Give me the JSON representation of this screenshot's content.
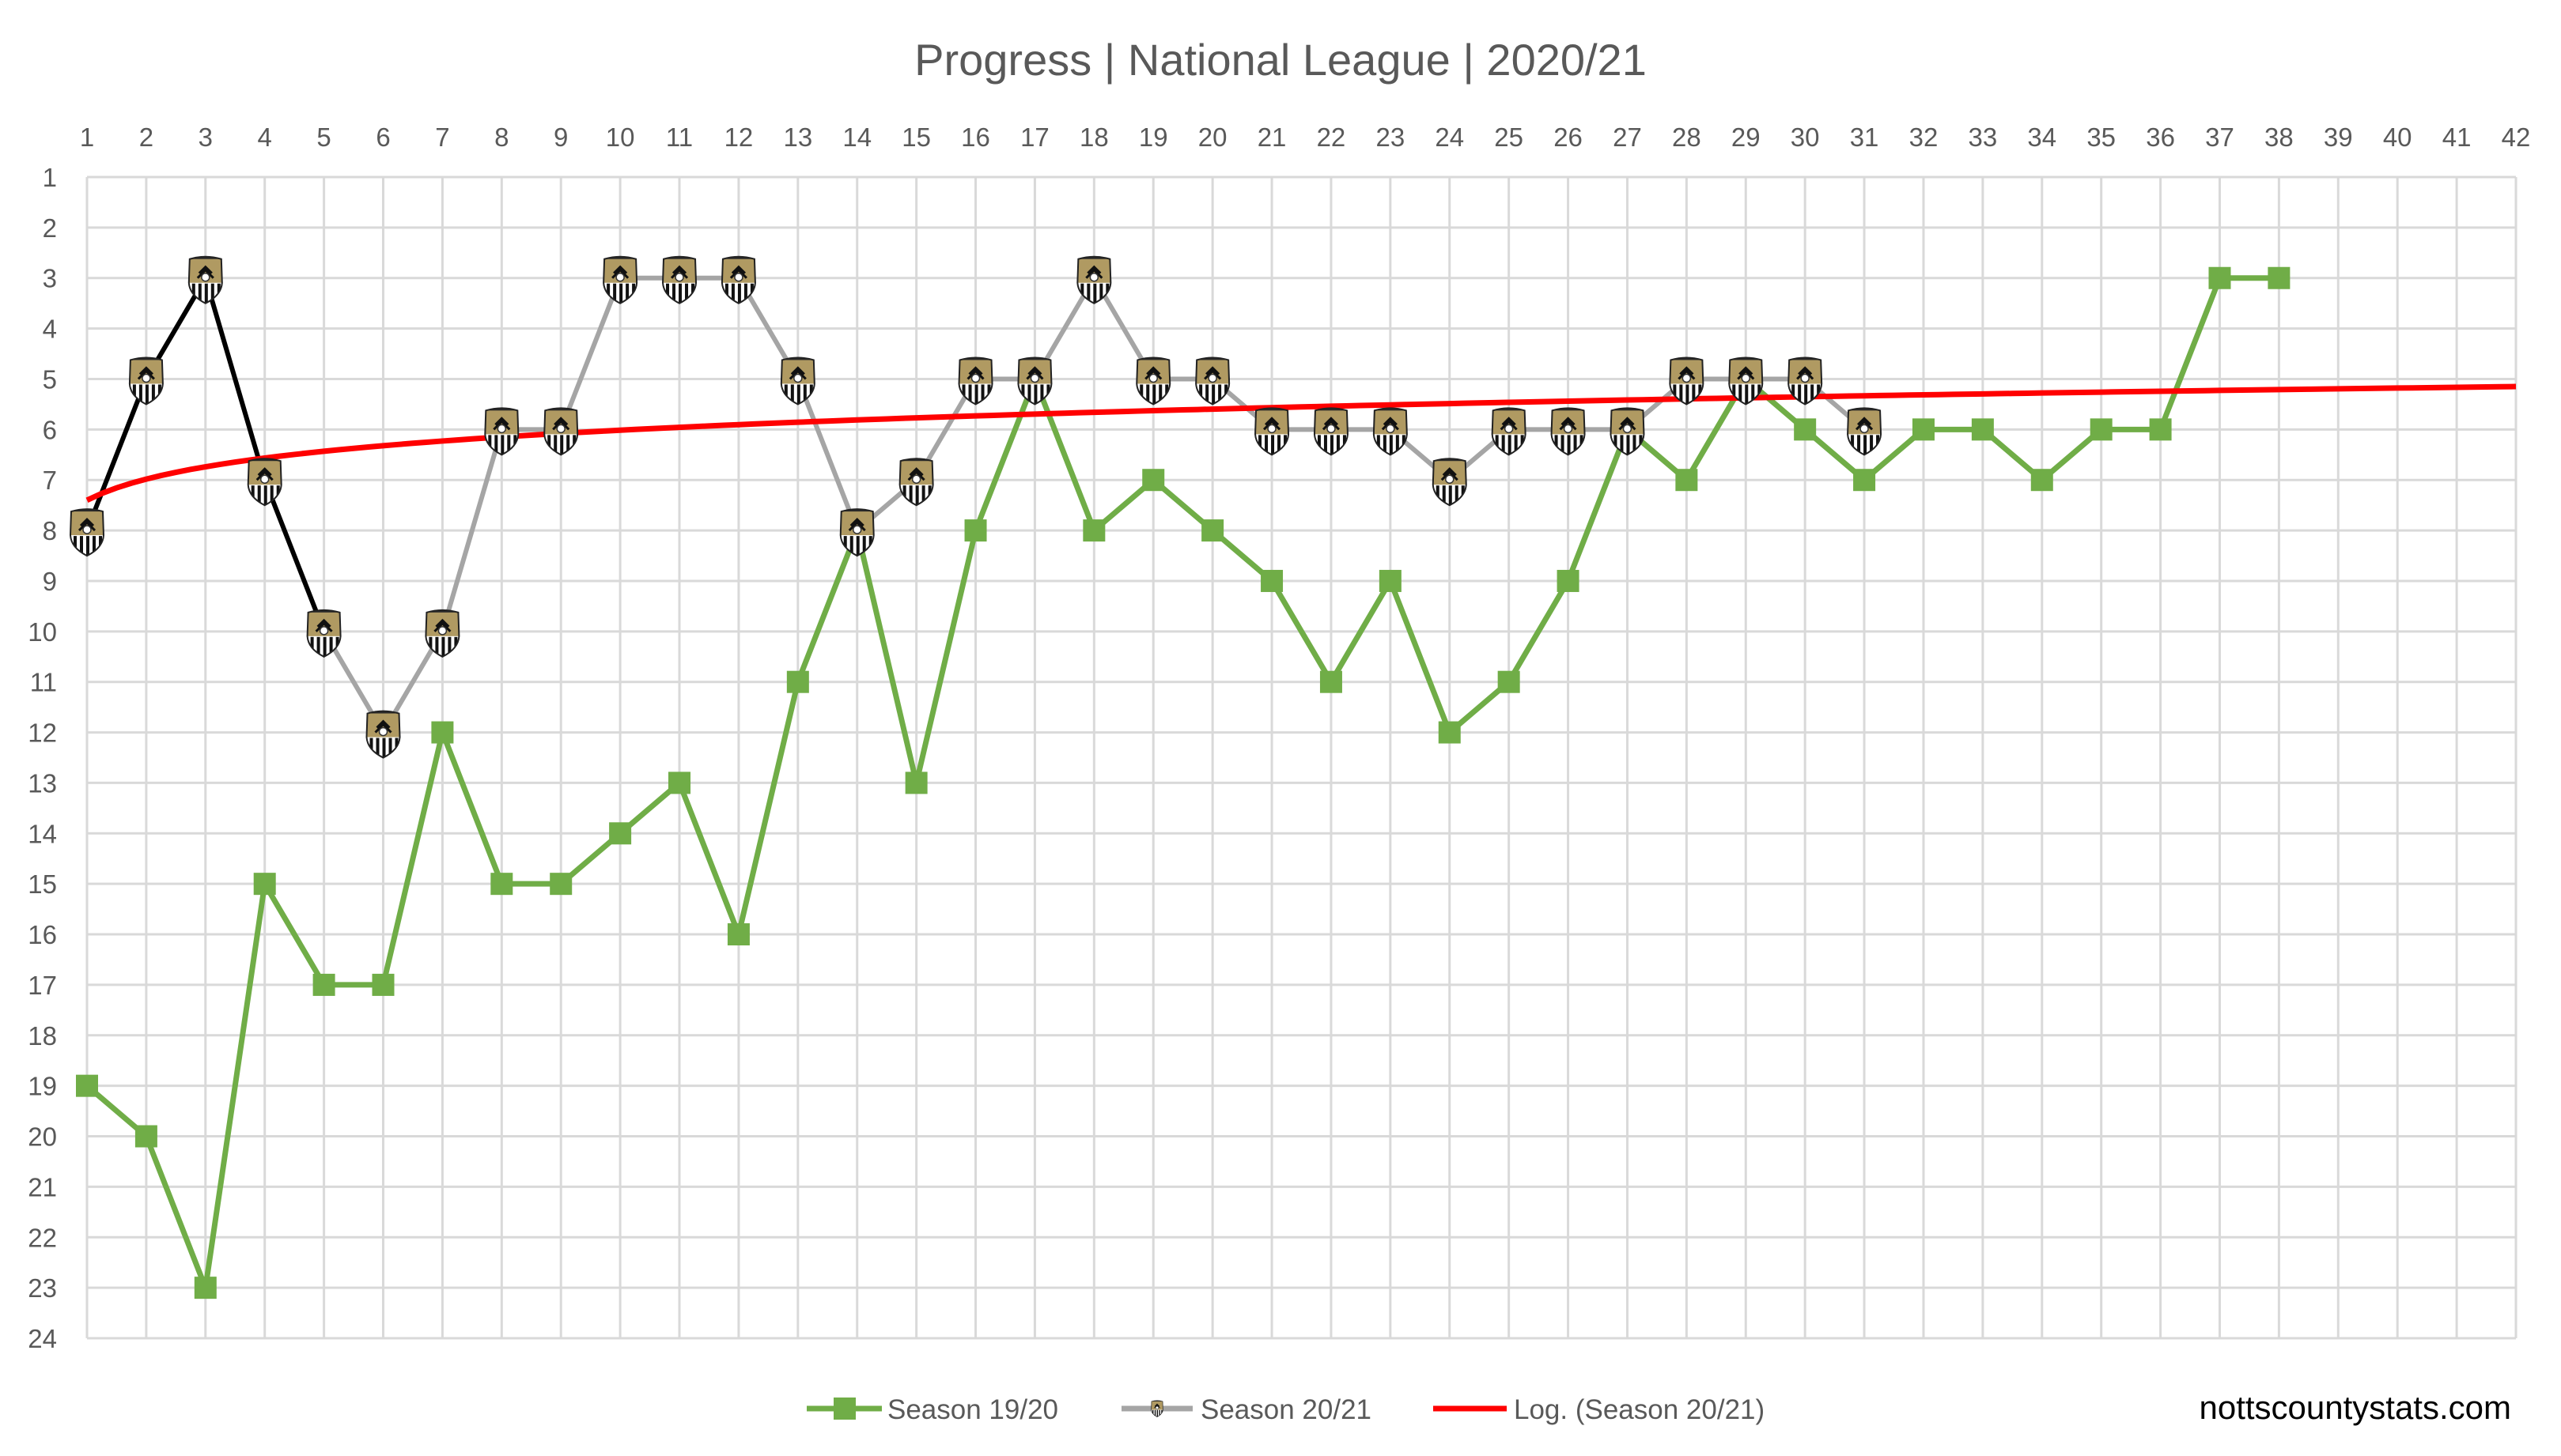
{
  "chart_data": {
    "type": "line",
    "title": "Progress | National League | 2020/21",
    "xlabel": "",
    "ylabel": "",
    "x_ticks": [
      1,
      2,
      3,
      4,
      5,
      6,
      7,
      8,
      9,
      10,
      11,
      12,
      13,
      14,
      15,
      16,
      17,
      18,
      19,
      20,
      21,
      22,
      23,
      24,
      25,
      26,
      27,
      28,
      29,
      30,
      31,
      32,
      33,
      34,
      35,
      36,
      37,
      38,
      39,
      40,
      41,
      42
    ],
    "xlim": [
      1,
      42
    ],
    "y_ticks": [
      1,
      2,
      3,
      4,
      5,
      6,
      7,
      8,
      9,
      10,
      11,
      12,
      13,
      14,
      15,
      16,
      17,
      18,
      19,
      20,
      21,
      22,
      23,
      24
    ],
    "ylim": [
      1,
      24
    ],
    "y_reversed": true,
    "x_axis_position": "top",
    "grid": true,
    "legend_position": "bottom",
    "series": [
      {
        "name": "Season 19/20",
        "color": "#70AD47",
        "marker": "square",
        "x": [
          1,
          2,
          3,
          4,
          5,
          6,
          7,
          8,
          9,
          10,
          11,
          12,
          13,
          14,
          15,
          16,
          17,
          18,
          19,
          20,
          21,
          22,
          23,
          24,
          25,
          26,
          27,
          28,
          29,
          30,
          31,
          32,
          33,
          34,
          35,
          36,
          37,
          38
        ],
        "values": [
          19,
          20,
          23,
          15,
          17,
          17,
          12,
          15,
          15,
          14,
          13,
          16,
          11,
          8,
          13,
          8,
          5,
          8,
          7,
          8,
          9,
          11,
          9,
          12,
          11,
          9,
          6,
          7,
          5,
          6,
          7,
          6,
          6,
          7,
          6,
          6,
          3,
          3
        ]
      },
      {
        "name": "Season 20/21",
        "color": "#A5A5A5",
        "early_segment_color": "#000000",
        "marker": "club-crest",
        "x": [
          1,
          2,
          3,
          4,
          5,
          6,
          7,
          8,
          9,
          10,
          11,
          12,
          13,
          14,
          15,
          16,
          17,
          18,
          19,
          20,
          21,
          22,
          23,
          24,
          25,
          26,
          27,
          28,
          29,
          30,
          31
        ],
        "values": [
          8,
          5,
          3,
          7,
          10,
          12,
          10,
          6,
          6,
          3,
          3,
          3,
          5,
          8,
          7,
          5,
          5,
          3,
          5,
          5,
          6,
          6,
          6,
          7,
          6,
          6,
          6,
          5,
          5,
          5,
          6
        ]
      },
      {
        "name": "Log. (Season 20/21)",
        "color": "#FF0000",
        "type": "logarithmic-trendline",
        "intercept": 7.4,
        "slope": -0.602
      }
    ]
  },
  "watermark": "nottscountystats.com"
}
